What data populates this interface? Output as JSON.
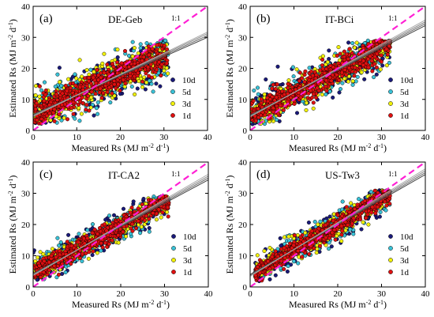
{
  "chart_data": [
    {
      "type": "scatter",
      "panel_label": "(a)",
      "site": "DE-Geb",
      "one_to_one_label": "1:1",
      "xlabel": "Measured Rs (MJ m-2 d-1)",
      "ylabel": "Estimated Rs (MJ m-2 d-1)",
      "xlim": [
        0,
        40
      ],
      "ylim": [
        0,
        40
      ],
      "xticks": [
        "0",
        "10",
        "20",
        "30",
        "40"
      ],
      "yticks": [
        "0",
        "10",
        "20",
        "30",
        "40"
      ],
      "legend_position": "bottom-right",
      "legend": [
        "10d",
        "5d",
        "3d",
        "1d"
      ],
      "colors": {
        "10d": "#1a1a7a",
        "5d": "#39c2d7",
        "3d": "#f2f20a",
        "1d": "#e01010",
        "one_to_one": "#ff1fd4"
      },
      "x_range": [
        0,
        31
      ],
      "y_range": [
        2,
        29
      ],
      "cloud": {
        "slope": 0.62,
        "intercept": 5.5,
        "spread": 5.5
      },
      "fit_lines": [
        {
          "slope": 0.62,
          "intercept": 5.2
        },
        {
          "slope": 0.64,
          "intercept": 5.0
        },
        {
          "slope": 0.66,
          "intercept": 4.8
        },
        {
          "slope": 0.68,
          "intercept": 4.5
        }
      ]
    },
    {
      "type": "scatter",
      "panel_label": "(b)",
      "site": "IT-BCi",
      "one_to_one_label": "1:1",
      "xlabel": "Measured Rs (MJ m-2 d-1)",
      "ylabel": "Estimated Rs (MJ m-2 d-1)",
      "xlim": [
        0,
        40
      ],
      "ylim": [
        0,
        40
      ],
      "xticks": [
        "0",
        "10",
        "20",
        "30",
        "40"
      ],
      "yticks": [
        "0",
        "10",
        "20",
        "30",
        "40"
      ],
      "legend_position": "bottom-right",
      "legend": [
        "10d",
        "5d",
        "3d",
        "1d"
      ],
      "colors": {
        "10d": "#1a1a7a",
        "5d": "#39c2d7",
        "3d": "#f2f20a",
        "1d": "#e01010",
        "one_to_one": "#ff1fd4"
      },
      "x_range": [
        0,
        32
      ],
      "y_range": [
        2,
        29
      ],
      "cloud": {
        "slope": 0.72,
        "intercept": 5.0,
        "spread": 5.0
      },
      "fit_lines": [
        {
          "slope": 0.72,
          "intercept": 5.0
        },
        {
          "slope": 0.74,
          "intercept": 4.8
        },
        {
          "slope": 0.76,
          "intercept": 4.6
        },
        {
          "slope": 0.78,
          "intercept": 4.4
        }
      ]
    },
    {
      "type": "scatter",
      "panel_label": "(c)",
      "site": "IT-CA2",
      "one_to_one_label": "1:1",
      "xlabel": "Measured Rs (MJ m-2 d-1)",
      "ylabel": "Estimated Rs (MJ m-2 d-1)",
      "xlim": [
        0,
        40
      ],
      "ylim": [
        0,
        40
      ],
      "xticks": [
        "0",
        "10",
        "20",
        "30",
        "40"
      ],
      "yticks": [
        "0",
        "10",
        "20",
        "30",
        "40"
      ],
      "legend_position": "bottom-right",
      "legend": [
        "10d",
        "5d",
        "3d",
        "1d"
      ],
      "colors": {
        "10d": "#1a1a7a",
        "5d": "#39c2d7",
        "3d": "#f2f20a",
        "1d": "#e01010",
        "one_to_one": "#ff1fd4"
      },
      "x_range": [
        0,
        31
      ],
      "y_range": [
        2,
        29
      ],
      "cloud": {
        "slope": 0.75,
        "intercept": 4.5,
        "spread": 3.5
      },
      "fit_lines": [
        {
          "slope": 0.75,
          "intercept": 4.3
        },
        {
          "slope": 0.77,
          "intercept": 4.1
        },
        {
          "slope": 0.79,
          "intercept": 3.9
        },
        {
          "slope": 0.81,
          "intercept": 3.7
        }
      ]
    },
    {
      "type": "scatter",
      "panel_label": "(d)",
      "site": "US-Tw3",
      "one_to_one_label": "1:1",
      "xlabel": "Measured Rs (MJ m-2 d-1)",
      "ylabel": "Estimated Rs (MJ m-2 d-1)",
      "xlim": [
        0,
        40
      ],
      "ylim": [
        0,
        40
      ],
      "xticks": [
        "0",
        "10",
        "20",
        "30",
        "40"
      ],
      "yticks": [
        "0",
        "10",
        "20",
        "30",
        "40"
      ],
      "legend_position": "bottom-right",
      "legend": [
        "10d",
        "5d",
        "3d",
        "1d"
      ],
      "colors": {
        "10d": "#1a1a7a",
        "5d": "#39c2d7",
        "3d": "#f2f20a",
        "1d": "#e01010",
        "one_to_one": "#ff1fd4"
      },
      "x_range": [
        1,
        32
      ],
      "y_range": [
        1,
        31
      ],
      "cloud": {
        "slope": 0.8,
        "intercept": 4.0,
        "spread": 3.5
      },
      "fit_lines": [
        {
          "slope": 0.8,
          "intercept": 4.0
        },
        {
          "slope": 0.82,
          "intercept": 3.8
        },
        {
          "slope": 0.84,
          "intercept": 3.6
        },
        {
          "slope": 0.86,
          "intercept": 3.4
        }
      ]
    }
  ]
}
